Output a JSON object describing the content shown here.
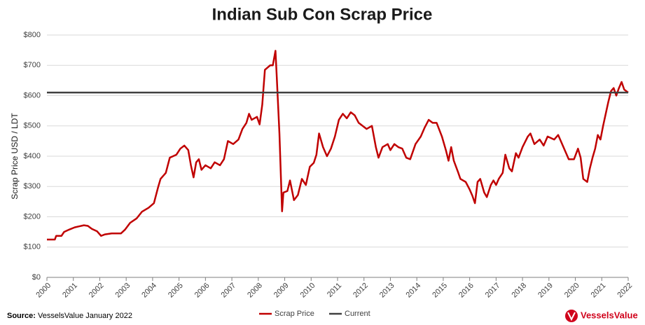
{
  "chart_data": {
    "type": "line",
    "title": "Indian Sub Con Scrap Price",
    "y_label": "Scrap Price USD / LDT",
    "xlim": [
      2000,
      2022
    ],
    "xticks": [
      2000,
      2001,
      2002,
      2003,
      2004,
      2005,
      2006,
      2007,
      2008,
      2009,
      2010,
      2011,
      2012,
      2013,
      2014,
      2015,
      2016,
      2017,
      2018,
      2019,
      2020,
      2021,
      2022
    ],
    "ylim": [
      0,
      800
    ],
    "yticks": [
      {
        "value": 0,
        "label": "$0"
      },
      {
        "value": 100,
        "label": "$100"
      },
      {
        "value": 200,
        "label": "$200"
      },
      {
        "value": 300,
        "label": "$300"
      },
      {
        "value": 400,
        "label": "$400"
      },
      {
        "value": 500,
        "label": "$500"
      },
      {
        "value": 600,
        "label": "$600"
      },
      {
        "value": 700,
        "label": "$700"
      },
      {
        "value": 800,
        "label": "$800"
      }
    ],
    "grid": true,
    "legend": "bottom",
    "series": [
      {
        "name": "Scrap Price",
        "color": "#c00000",
        "x": [
          2000,
          2000.3,
          2000.35,
          2000.55,
          2000.65,
          2000.85,
          2001.05,
          2001.2,
          2001.4,
          2001.55,
          2001.7,
          2001.9,
          2002.05,
          2002.2,
          2002.45,
          2002.8,
          2002.95,
          2003.15,
          2003.4,
          2003.6,
          2003.85,
          2004.05,
          2004.2,
          2004.3,
          2004.5,
          2004.65,
          2004.9,
          2005.05,
          2005.2,
          2005.35,
          2005.45,
          2005.55,
          2005.65,
          2005.75,
          2005.85,
          2006.0,
          2006.2,
          2006.35,
          2006.55,
          2006.7,
          2006.85,
          2007.05,
          2007.25,
          2007.4,
          2007.55,
          2007.65,
          2007.75,
          2007.95,
          2008.05,
          2008.15,
          2008.25,
          2008.45,
          2008.55,
          2008.65,
          2008.7,
          2008.8,
          2008.9,
          2008.95,
          2009.1,
          2009.2,
          2009.35,
          2009.5,
          2009.65,
          2009.8,
          2009.95,
          2010.1,
          2010.2,
          2010.3,
          2010.45,
          2010.6,
          2010.75,
          2010.9,
          2011.05,
          2011.2,
          2011.35,
          2011.5,
          2011.65,
          2011.8,
          2011.95,
          2012.1,
          2012.3,
          2012.45,
          2012.55,
          2012.7,
          2012.9,
          2013.0,
          2013.15,
          2013.3,
          2013.45,
          2013.6,
          2013.75,
          2013.95,
          2014.15,
          2014.3,
          2014.45,
          2014.6,
          2014.75,
          2014.95,
          2015.1,
          2015.2,
          2015.3,
          2015.4,
          2015.55,
          2015.65,
          2015.85,
          2016.0,
          2016.1,
          2016.2,
          2016.3,
          2016.4,
          2016.55,
          2016.65,
          2016.8,
          2016.9,
          2017.0,
          2017.1,
          2017.25,
          2017.35,
          2017.5,
          2017.6,
          2017.75,
          2017.85,
          2018.0,
          2018.2,
          2018.3,
          2018.45,
          2018.65,
          2018.8,
          2018.95,
          2019.2,
          2019.35,
          2019.45,
          2019.6,
          2019.75,
          2019.95,
          2020.1,
          2020.2,
          2020.3,
          2020.45,
          2020.55,
          2020.65,
          2020.75,
          2020.85,
          2020.95,
          2021.05,
          2021.15,
          2021.25,
          2021.35,
          2021.45,
          2021.55,
          2021.65,
          2021.75,
          2021.85,
          2022.0
        ],
        "values": [
          125,
          125,
          137,
          137,
          150,
          158,
          165,
          168,
          172,
          170,
          160,
          152,
          137,
          142,
          145,
          145,
          157,
          180,
          195,
          217,
          230,
          245,
          295,
          325,
          345,
          395,
          405,
          425,
          435,
          420,
          370,
          330,
          380,
          390,
          355,
          370,
          360,
          380,
          370,
          390,
          450,
          440,
          455,
          490,
          510,
          540,
          520,
          530,
          505,
          570,
          685,
          700,
          700,
          748,
          660,
          475,
          218,
          280,
          285,
          320,
          255,
          272,
          325,
          305,
          365,
          378,
          405,
          475,
          430,
          400,
          425,
          465,
          520,
          540,
          525,
          545,
          535,
          510,
          500,
          490,
          500,
          430,
          395,
          430,
          440,
          420,
          440,
          430,
          425,
          395,
          390,
          440,
          465,
          495,
          520,
          510,
          510,
          465,
          420,
          385,
          430,
          385,
          350,
          325,
          315,
          290,
          270,
          245,
          315,
          325,
          280,
          265,
          305,
          320,
          305,
          325,
          345,
          405,
          360,
          350,
          410,
          395,
          430,
          465,
          475,
          440,
          455,
          435,
          465,
          455,
          470,
          450,
          420,
          390,
          390,
          425,
          395,
          325,
          315,
          360,
          395,
          425,
          470,
          455,
          500,
          540,
          580,
          615,
          625,
          600,
          625,
          645,
          620,
          610
        ]
      },
      {
        "name": "Current",
        "color": "#404040",
        "x": [
          2000,
          2022
        ],
        "values": [
          610,
          610
        ]
      }
    ]
  },
  "source": {
    "label": "Source:",
    "text": "VesselsValue January 2022"
  },
  "logo": "VesselsValue"
}
